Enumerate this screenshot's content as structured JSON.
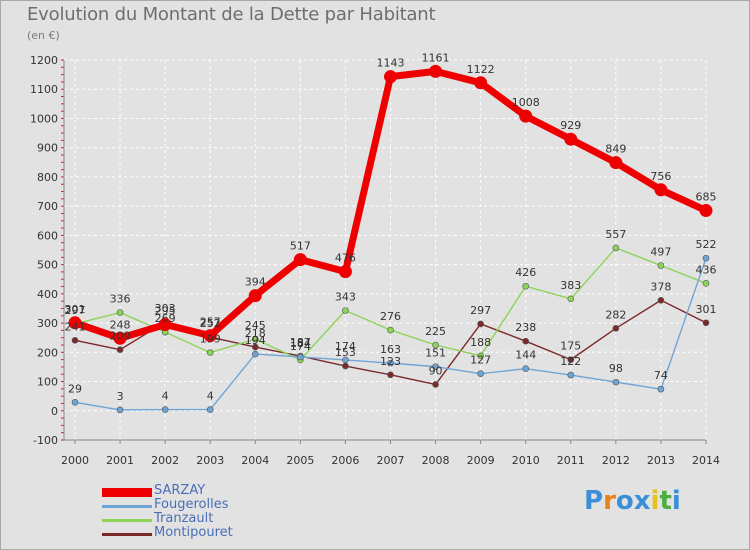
{
  "title": "Evolution du Montant de la Dette par Habitant",
  "subtitle": "(en €)",
  "logo_text": "Proxiti",
  "logo_colors": [
    "#3a8fd8",
    "#e8821c",
    "#3a8fd8",
    "#3a8fd8",
    "#e8c21c",
    "#4cae3c",
    "#3a8fd8"
  ],
  "chart_data": {
    "type": "line",
    "title": "Evolution du Montant de la Dette par Habitant",
    "ylabel": "(en €)",
    "xlabel": "",
    "x": [
      "2000",
      "2001",
      "2002",
      "2003",
      "2004",
      "2005",
      "2006",
      "2007",
      "2008",
      "2009",
      "2010",
      "2011",
      "2012",
      "2013",
      "2014"
    ],
    "ylim": [
      -100,
      1200
    ],
    "yticks": [
      "-100",
      "0",
      "100",
      "200",
      "300",
      "400",
      "500",
      "600",
      "700",
      "800",
      "900",
      "1000",
      "1100",
      "1200"
    ],
    "grid": true,
    "legend_position": "bottom-left",
    "series": [
      {
        "name": "SARZAY",
        "color": "#ee0000",
        "values": [
          301,
          248,
          295,
          257,
          394,
          517,
          476,
          1143,
          1161,
          1122,
          1008,
          929,
          849,
          756,
          685
        ],
        "labels": [
          "301",
          "248",
          "295",
          "257",
          "394",
          "517",
          "476",
          "1143",
          "1161",
          "1122",
          "1008",
          "929",
          "849",
          "756",
          "685"
        ]
      },
      {
        "name": "Fougerolles",
        "color": "#6fa5d6",
        "values": [
          29,
          3,
          4,
          4,
          194,
          184,
          174,
          163,
          151,
          127,
          144,
          122,
          98,
          74,
          522
        ],
        "labels": [
          "29",
          "3",
          "4",
          "4",
          "194",
          "184",
          "174",
          "163",
          "151",
          "127",
          "144",
          "122",
          "98",
          "74",
          "522"
        ]
      },
      {
        "name": "Tranzault",
        "color": "#8cd458",
        "values": [
          297,
          336,
          269,
          199,
          245,
          174,
          343,
          276,
          225,
          188,
          426,
          383,
          557,
          497,
          436
        ],
        "labels": [
          "297",
          "336",
          "269",
          "199",
          "245",
          "174",
          "343",
          "276",
          "225",
          "188",
          "426",
          "383",
          "557",
          "497",
          "436"
        ]
      },
      {
        "name": "Montipouret",
        "color": "#7a2a2a",
        "values": [
          241,
          209,
          303,
          252,
          218,
          187,
          153,
          123,
          90,
          297,
          238,
          175,
          282,
          378,
          301
        ],
        "labels": [
          "241",
          "209",
          "303",
          "252",
          "218",
          "187",
          "153",
          "123",
          "90",
          "297",
          "238",
          "175",
          "282",
          "378",
          "301"
        ]
      }
    ]
  }
}
